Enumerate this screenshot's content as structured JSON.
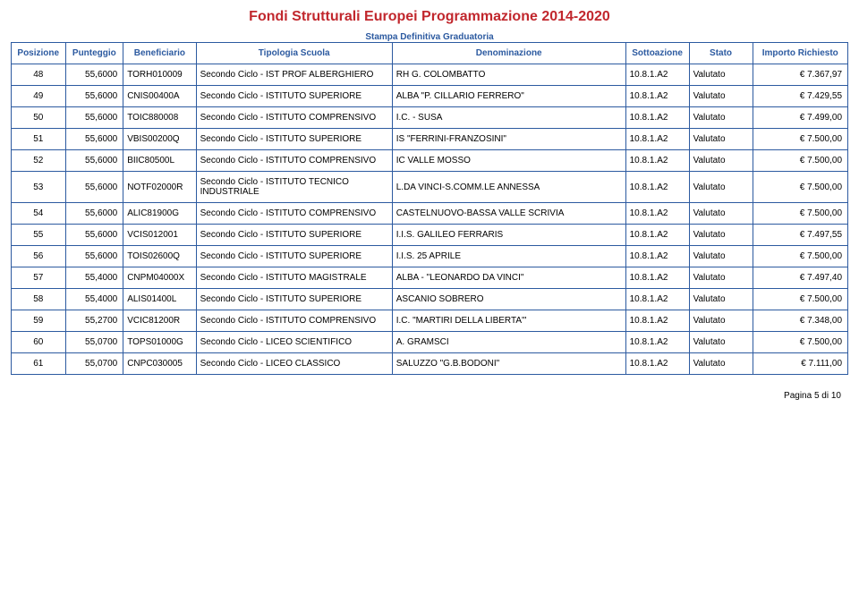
{
  "title": "Fondi Strutturali Europei Programmazione 2014-2020",
  "subtitle": "Stampa Definitiva Graduatoria",
  "colors": {
    "title": "#c1272d",
    "header_text": "#2c5aa0",
    "border": "#2c5aa0",
    "text": "#000000",
    "background": "#ffffff"
  },
  "columns": [
    "Posizione",
    "Punteggio",
    "Beneficiario",
    "Tipologia Scuola",
    "Denominazione",
    "Sottoazione",
    "Stato",
    "Importo Richiesto"
  ],
  "rows": [
    {
      "pos": "48",
      "score": "55,6000",
      "code": "TORH010009",
      "tipo": "Secondo Ciclo - IST PROF ALBERGHIERO",
      "denom": "RH G. COLOMBATTO",
      "sub": "10.8.1.A2",
      "stato": "Valutato",
      "imp": "€ 7.367,97"
    },
    {
      "pos": "49",
      "score": "55,6000",
      "code": "CNIS00400A",
      "tipo": "Secondo Ciclo - ISTITUTO SUPERIORE",
      "denom": "ALBA \"P. CILLARIO FERRERO\"",
      "sub": "10.8.1.A2",
      "stato": "Valutato",
      "imp": "€ 7.429,55"
    },
    {
      "pos": "50",
      "score": "55,6000",
      "code": "TOIC880008",
      "tipo": "Secondo Ciclo - ISTITUTO COMPRENSIVO",
      "denom": "I.C. - SUSA",
      "sub": "10.8.1.A2",
      "stato": "Valutato",
      "imp": "€ 7.499,00"
    },
    {
      "pos": "51",
      "score": "55,6000",
      "code": "VBIS00200Q",
      "tipo": "Secondo Ciclo - ISTITUTO SUPERIORE",
      "denom": "IS \"FERRINI-FRANZOSINI\"",
      "sub": "10.8.1.A2",
      "stato": "Valutato",
      "imp": "€ 7.500,00"
    },
    {
      "pos": "52",
      "score": "55,6000",
      "code": "BIIC80500L",
      "tipo": "Secondo Ciclo - ISTITUTO COMPRENSIVO",
      "denom": "IC VALLE MOSSO",
      "sub": "10.8.1.A2",
      "stato": "Valutato",
      "imp": "€ 7.500,00"
    },
    {
      "pos": "53",
      "score": "55,6000",
      "code": "NOTF02000R",
      "tipo": "Secondo Ciclo - ISTITUTO TECNICO INDUSTRIALE",
      "denom": "L.DA VINCI-S.COMM.LE ANNESSA",
      "sub": "10.8.1.A2",
      "stato": "Valutato",
      "imp": "€ 7.500,00"
    },
    {
      "pos": "54",
      "score": "55,6000",
      "code": "ALIC81900G",
      "tipo": "Secondo Ciclo - ISTITUTO COMPRENSIVO",
      "denom": "CASTELNUOVO-BASSA VALLE SCRIVIA",
      "sub": "10.8.1.A2",
      "stato": "Valutato",
      "imp": "€ 7.500,00"
    },
    {
      "pos": "55",
      "score": "55,6000",
      "code": "VCIS012001",
      "tipo": "Secondo Ciclo - ISTITUTO SUPERIORE",
      "denom": "I.I.S. GALILEO FERRARIS",
      "sub": "10.8.1.A2",
      "stato": "Valutato",
      "imp": "€ 7.497,55"
    },
    {
      "pos": "56",
      "score": "55,6000",
      "code": "TOIS02600Q",
      "tipo": "Secondo Ciclo - ISTITUTO SUPERIORE",
      "denom": "I.I.S. 25 APRILE",
      "sub": "10.8.1.A2",
      "stato": "Valutato",
      "imp": "€ 7.500,00"
    },
    {
      "pos": "57",
      "score": "55,4000",
      "code": "CNPM04000X",
      "tipo": "Secondo Ciclo - ISTITUTO MAGISTRALE",
      "denom": "ALBA - \"LEONARDO DA VINCI\"",
      "sub": "10.8.1.A2",
      "stato": "Valutato",
      "imp": "€ 7.497,40"
    },
    {
      "pos": "58",
      "score": "55,4000",
      "code": "ALIS01400L",
      "tipo": "Secondo Ciclo - ISTITUTO SUPERIORE",
      "denom": "ASCANIO SOBRERO",
      "sub": "10.8.1.A2",
      "stato": "Valutato",
      "imp": "€ 7.500,00"
    },
    {
      "pos": "59",
      "score": "55,2700",
      "code": "VCIC81200R",
      "tipo": "Secondo Ciclo - ISTITUTO COMPRENSIVO",
      "denom": "I.C. \"MARTIRI DELLA LIBERTA'\"",
      "sub": "10.8.1.A2",
      "stato": "Valutato",
      "imp": "€ 7.348,00"
    },
    {
      "pos": "60",
      "score": "55,0700",
      "code": "TOPS01000G",
      "tipo": "Secondo Ciclo - LICEO SCIENTIFICO",
      "denom": "A. GRAMSCI",
      "sub": "10.8.1.A2",
      "stato": "Valutato",
      "imp": "€ 7.500,00"
    },
    {
      "pos": "61",
      "score": "55,0700",
      "code": "CNPC030005",
      "tipo": "Secondo Ciclo - LICEO CLASSICO",
      "denom": "SALUZZO \"G.B.BODONI\"",
      "sub": "10.8.1.A2",
      "stato": "Valutato",
      "imp": "€ 7.111,00"
    }
  ],
  "footer": {
    "label": "Pagina 5 di",
    "total": "10"
  }
}
